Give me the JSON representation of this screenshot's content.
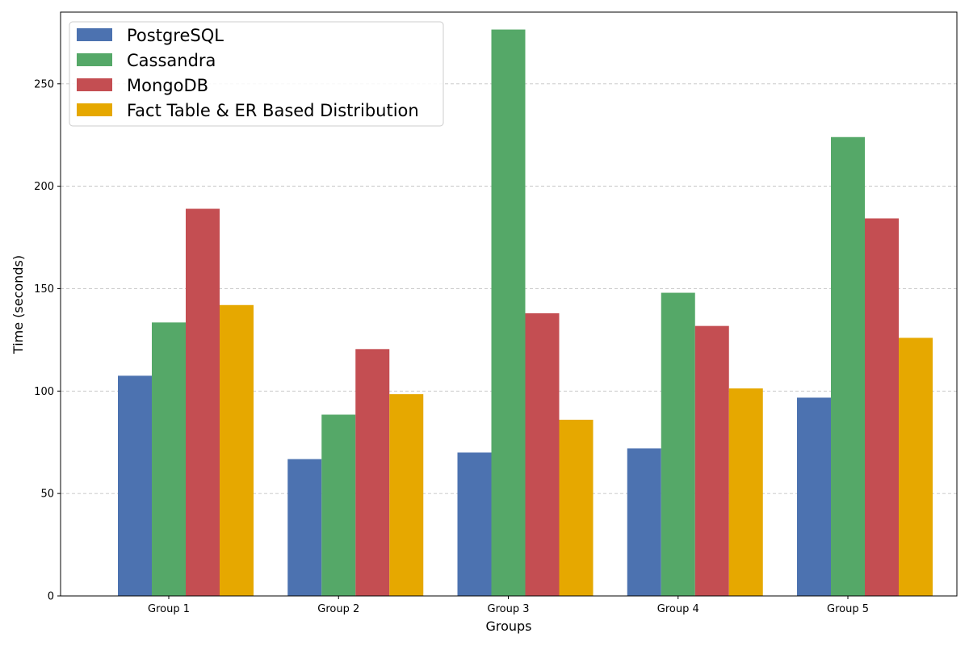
{
  "chart_data": {
    "type": "bar",
    "title": "",
    "xlabel": "Groups",
    "ylabel": "Time (seconds)",
    "categories": [
      "Group 1",
      "Group 2",
      "Group 3",
      "Group 4",
      "Group 5"
    ],
    "series": [
      {
        "name": "PostgreSQL",
        "color": "#4c72b0",
        "values": [
          107.5,
          66.8,
          70.0,
          72.0,
          96.8
        ]
      },
      {
        "name": "Cassandra",
        "color": "#55a868",
        "values": [
          133.5,
          88.5,
          276.5,
          148.0,
          224.0
        ]
      },
      {
        "name": "MongoDB",
        "color": "#c44e52",
        "values": [
          189.0,
          120.5,
          138.0,
          131.8,
          184.3
        ]
      },
      {
        "name": "Fact Table & ER Based Distribution",
        "color": "#e6a800",
        "values": [
          142.0,
          98.5,
          86.0,
          101.3,
          126.0
        ]
      }
    ],
    "ylim": [
      0,
      285
    ],
    "yticks": [
      0,
      50,
      100,
      150,
      200,
      250
    ],
    "grid": "y-dashed",
    "legend_position": "upper-left"
  }
}
